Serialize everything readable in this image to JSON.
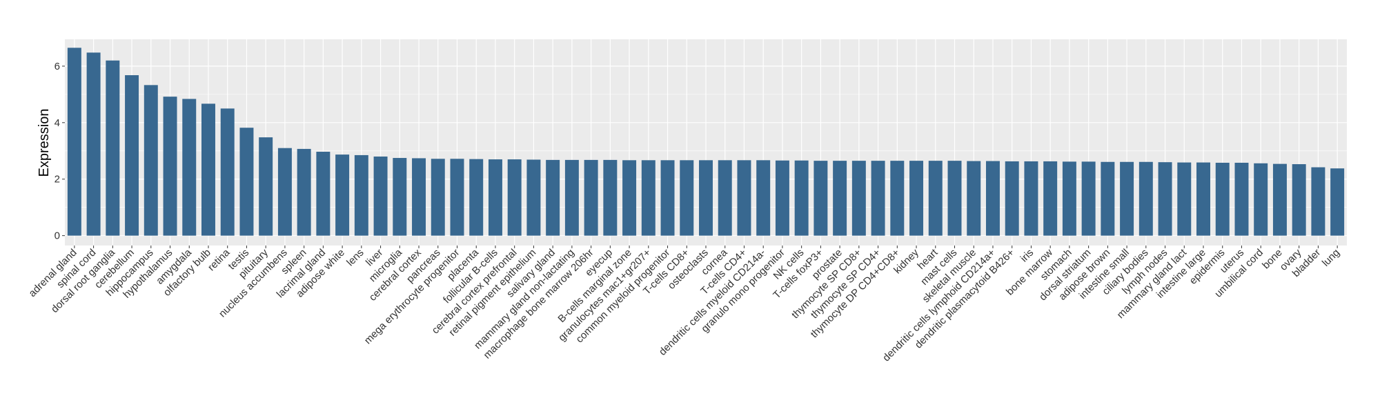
{
  "chart_data": {
    "type": "bar",
    "title": "",
    "xlabel": "",
    "ylabel": "Expression",
    "ylim": [
      -0.35,
      6.95
    ],
    "yticks": [
      0,
      2,
      4,
      6
    ],
    "grid": true,
    "legend": "none",
    "bar_color": "#386890",
    "panel_color": "#ebebeb",
    "grid_color": "#ffffff",
    "categories": [
      "adrenal gland",
      "spinal cord",
      "dorsal root ganglia",
      "cerebellum",
      "hippocampus",
      "hypothalamus",
      "amygdala",
      "olfactory bulb",
      "retina",
      "testis",
      "pituitary",
      "nucleus accumbens",
      "spleen",
      "lacrimal gland",
      "adipose white",
      "lens",
      "liver",
      "microglia",
      "cerebral cortex",
      "pancreas",
      "mega erythrocyte progenitor",
      "placenta",
      "follicular B-cells",
      "cerebral cortex prefrontal",
      "retinal pigment epithelium",
      "salivary gland",
      "mammary gland non-lactating",
      "macrophage bone marrow 206hr",
      "eyecup",
      "B-cells marginal zone",
      "granulocytes mac1+gr207+",
      "common myeloid progenitor",
      "T-cells CD8+",
      "osteoclasts",
      "cornea",
      "T-cells CD4+",
      "dendritic cells myeloid CD214a-",
      "granulo mono progenitor",
      "NK cells",
      "T-cells foxP3+",
      "prostate",
      "thymocyte SP CD8+",
      "thymocyte SP CD4+",
      "thymocyte DP CD4+CD8+",
      "kidney",
      "heart",
      "mast cells",
      "skeletal muscle",
      "dendritic cells lymphoid CD214a+",
      "dendritic plasmacytoid B426+",
      "iris",
      "bone marrow",
      "stomach",
      "dorsal striatum",
      "adipose brown",
      "intestine small",
      "ciliary bodies",
      "lymph nodes",
      "mammary gland lact",
      "intestine large",
      "epidermis",
      "uterus",
      "umbilical cord",
      "bone",
      "ovary",
      "bladder",
      "lung"
    ],
    "values": [
      6.65,
      6.48,
      6.2,
      5.68,
      5.33,
      4.92,
      4.84,
      4.67,
      4.5,
      3.82,
      3.48,
      3.1,
      3.07,
      2.97,
      2.87,
      2.85,
      2.8,
      2.75,
      2.74,
      2.72,
      2.72,
      2.71,
      2.7,
      2.7,
      2.69,
      2.68,
      2.68,
      2.68,
      2.68,
      2.67,
      2.67,
      2.67,
      2.67,
      2.67,
      2.67,
      2.67,
      2.67,
      2.66,
      2.66,
      2.65,
      2.65,
      2.65,
      2.65,
      2.65,
      2.65,
      2.65,
      2.65,
      2.64,
      2.64,
      2.63,
      2.63,
      2.63,
      2.62,
      2.62,
      2.61,
      2.61,
      2.61,
      2.6,
      2.59,
      2.59,
      2.58,
      2.58,
      2.56,
      2.54,
      2.53,
      2.42,
      2.38
    ]
  }
}
